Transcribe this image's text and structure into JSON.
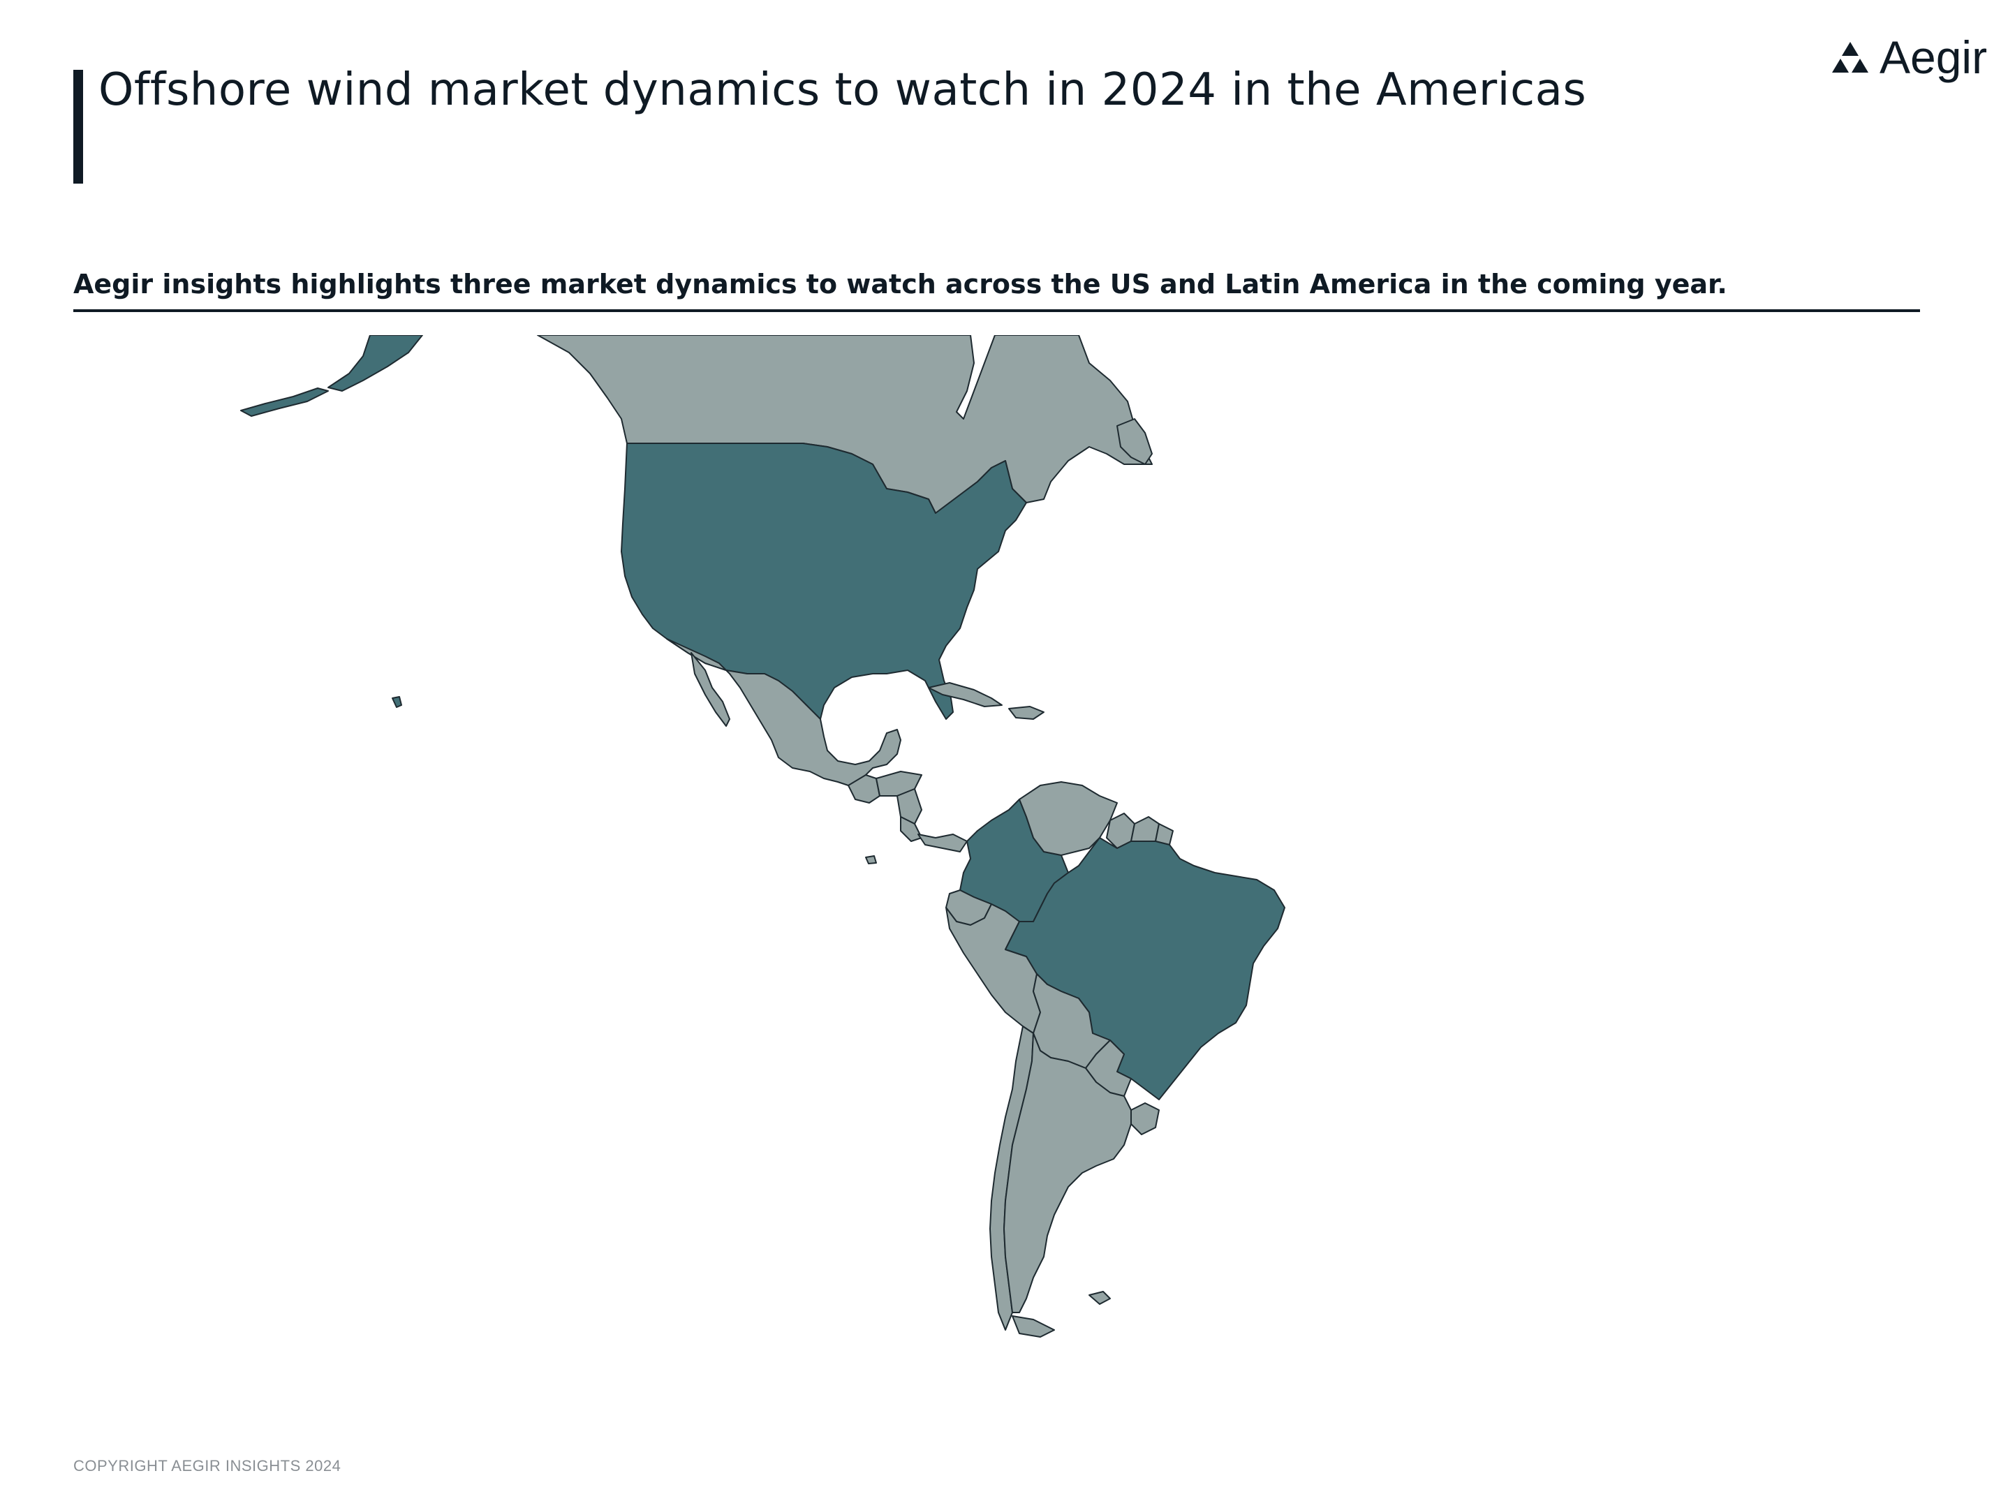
{
  "header": {
    "title": "Offshore wind market dynamics to watch in 2024 in the Americas",
    "logo_text": "Aegir",
    "subtitle": "Aegir insights highlights three market dynamics to watch across the US and Latin America in the coming year."
  },
  "map": {
    "highlight_color": "#426f76",
    "base_color": "#95a4a4",
    "highlighted_countries": [
      "United States",
      "Colombia",
      "Brazil"
    ],
    "other_countries": [
      "Canada",
      "Mexico",
      "Guatemala",
      "Honduras",
      "Nicaragua",
      "Costa Rica",
      "Panama",
      "Cuba",
      "Venezuela",
      "Guyana",
      "Suriname",
      "French Guiana",
      "Ecuador",
      "Peru",
      "Bolivia",
      "Paraguay",
      "Chile",
      "Argentina",
      "Uruguay"
    ]
  },
  "footer": {
    "copyright": "COPYRIGHT AEGIR INSIGHTS 2024"
  }
}
